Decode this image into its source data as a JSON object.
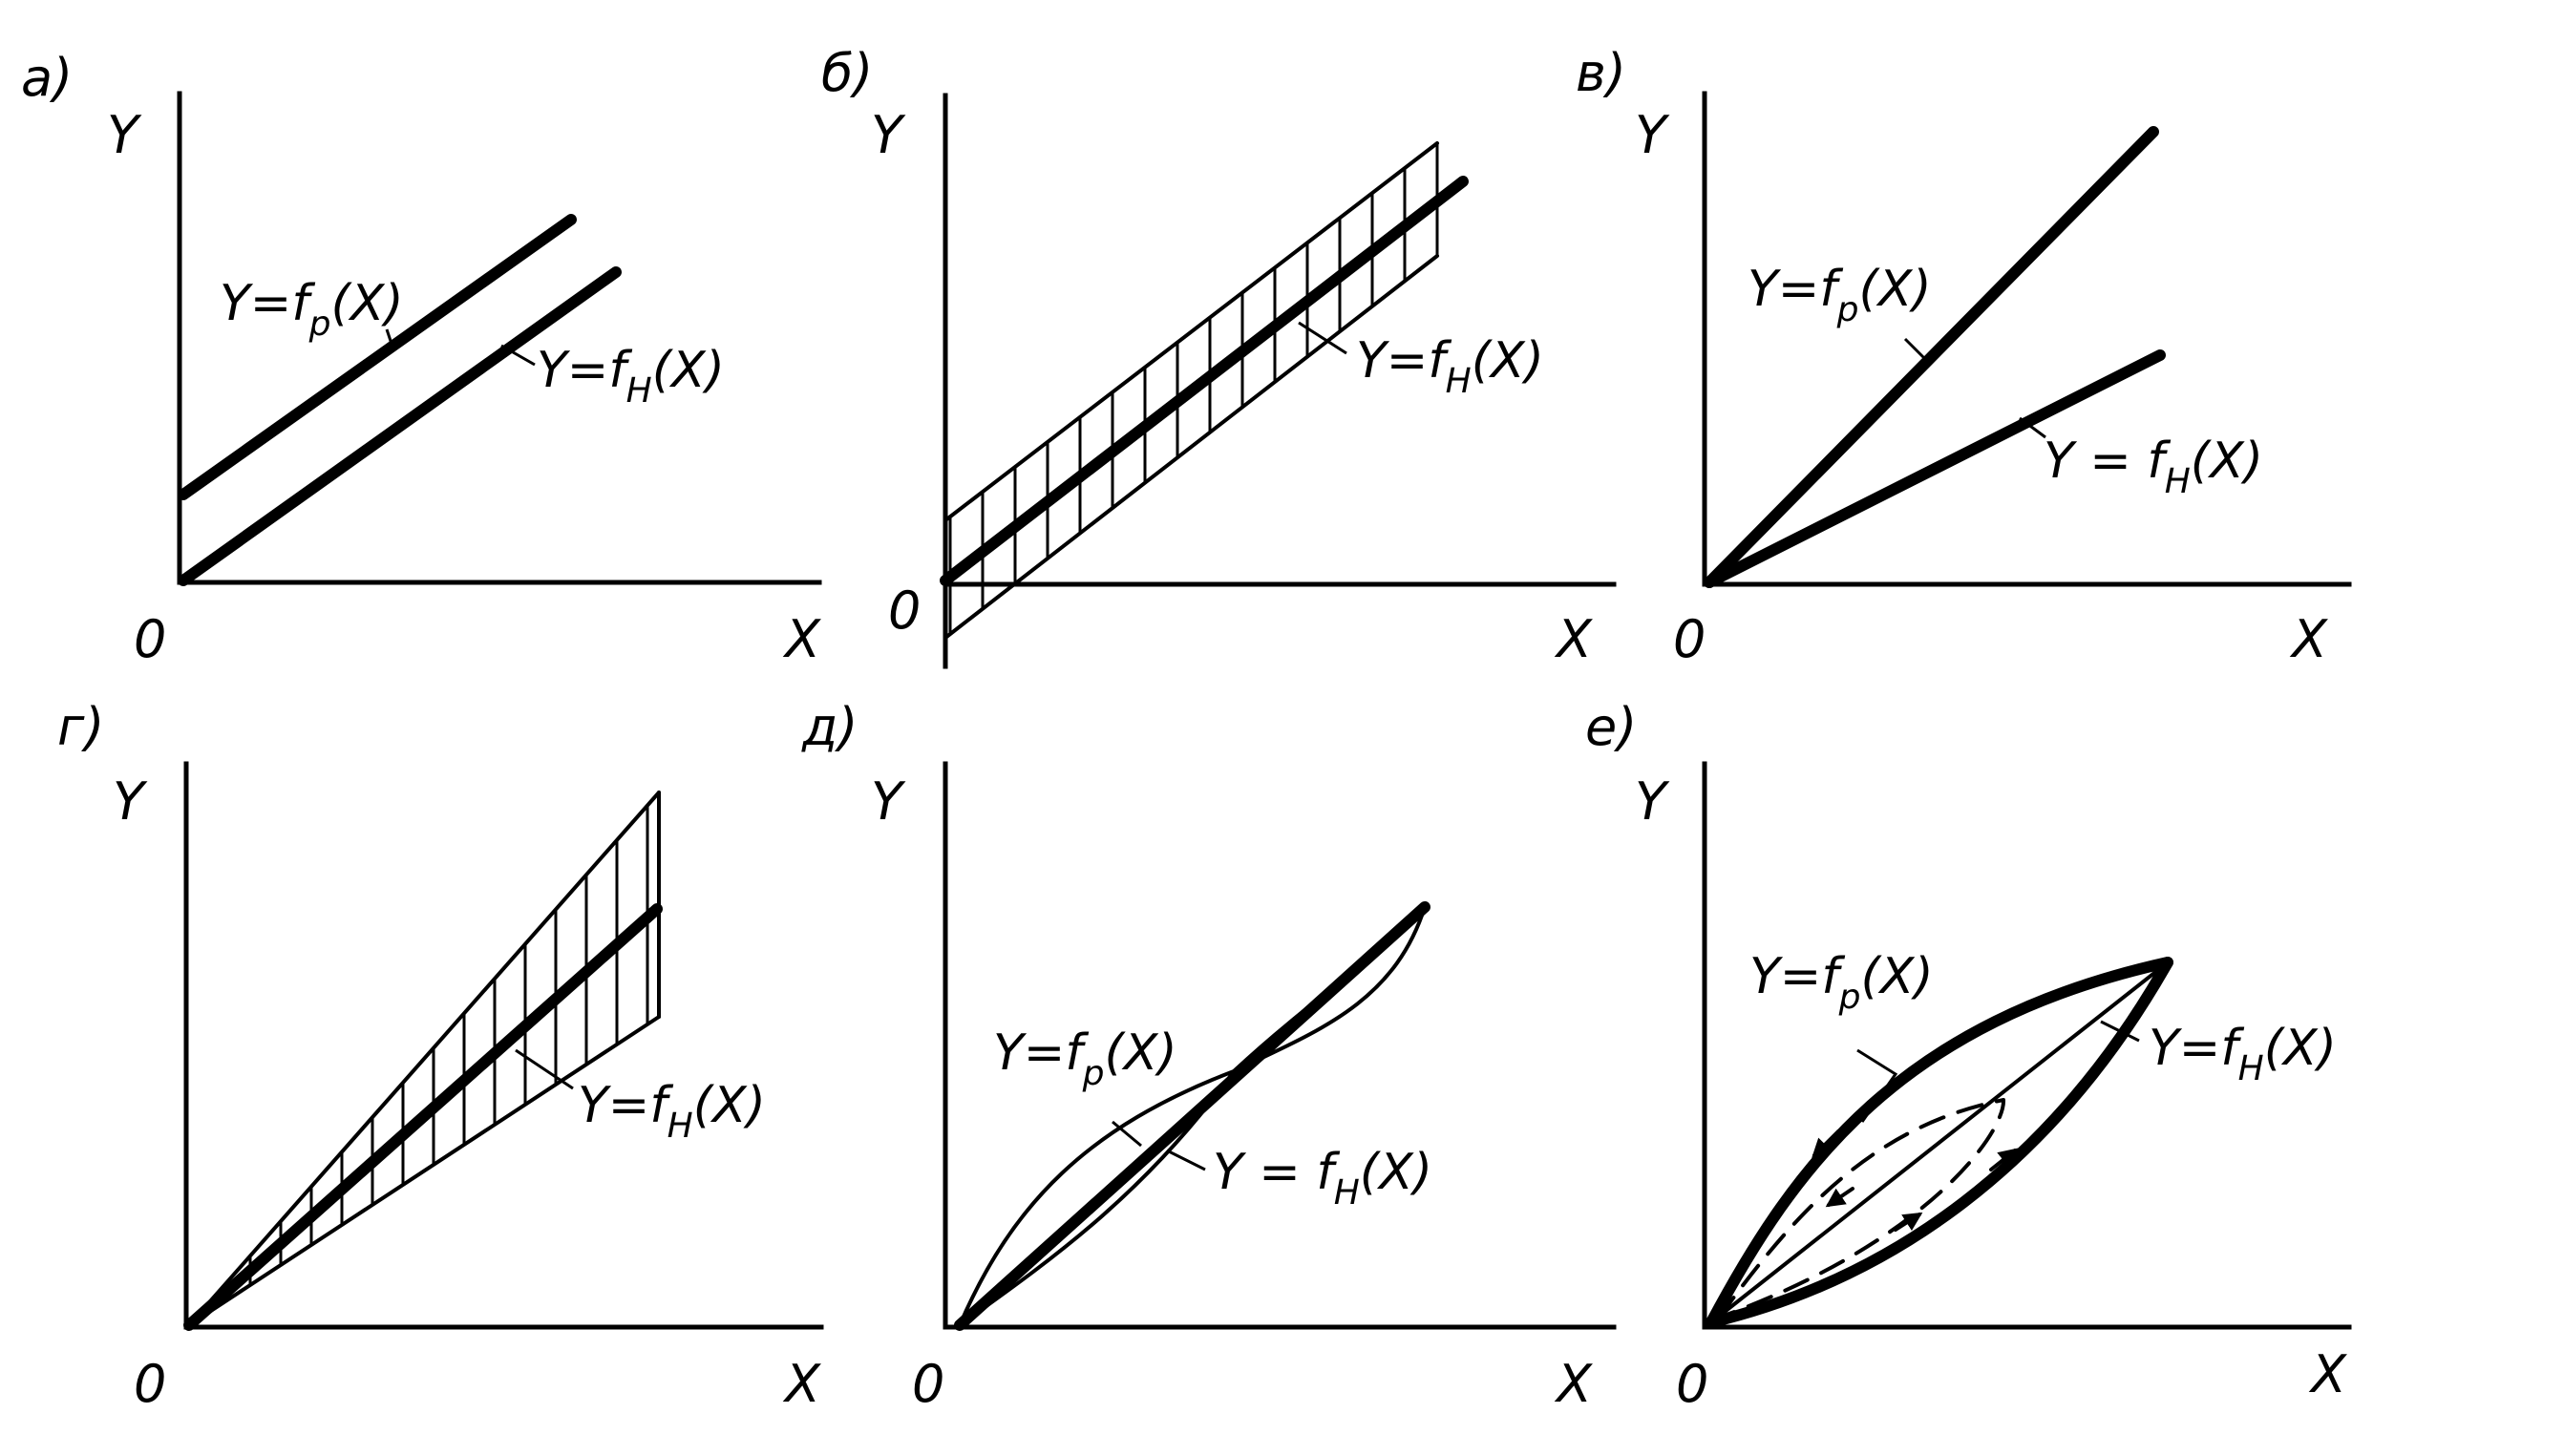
{
  "panels": [
    {
      "tag": "а)",
      "y_axis": "Y",
      "x_axis": "X",
      "origin": "0",
      "labels": [
        {
          "pre": "Y=f",
          "sub": "p",
          "post": "(X)"
        },
        {
          "pre": "Y=f",
          "sub": "H",
          "post": "(X)"
        }
      ]
    },
    {
      "tag": "б)",
      "y_axis": "Y",
      "x_axis": "X",
      "origin": "0",
      "labels": [
        {
          "pre": "Y=f",
          "sub": "H",
          "post": "(X)"
        }
      ]
    },
    {
      "tag": "в)",
      "y_axis": "Y",
      "x_axis": "X",
      "origin": "0",
      "labels": [
        {
          "pre": "Y=f",
          "sub": "p",
          "post": "(X)"
        },
        {
          "pre": "Y = f",
          "sub": "H",
          "post": "(X)"
        }
      ]
    },
    {
      "tag": "г)",
      "y_axis": "Y",
      "x_axis": "X",
      "origin": "0",
      "labels": [
        {
          "pre": "Y=f",
          "sub": "H",
          "post": "(X)"
        }
      ]
    },
    {
      "tag": "д)",
      "y_axis": "Y",
      "x_axis": "X",
      "origin": "0",
      "labels": [
        {
          "pre": "Y=f",
          "sub": "p",
          "post": "(X)"
        },
        {
          "pre": "Y = f",
          "sub": "H",
          "post": "(X)"
        }
      ]
    },
    {
      "tag": "е)",
      "y_axis": "Y",
      "x_axis": "X",
      "origin": "0",
      "labels": [
        {
          "pre": "Y=f",
          "sub": "p",
          "post": "(X)"
        },
        {
          "pre": "Y=f",
          "sub": "H",
          "post": "(X)"
        }
      ]
    }
  ]
}
